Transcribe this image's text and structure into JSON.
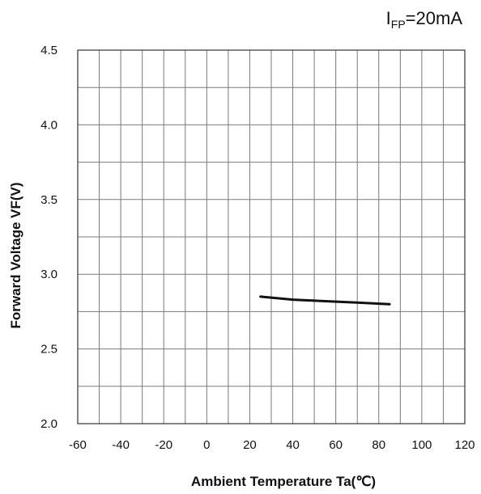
{
  "chart_data": {
    "type": "line",
    "condition": {
      "main": "I",
      "sub": "FP",
      "rest": "=20mA"
    },
    "xlabel": "Ambient Temperature Ta(℃)",
    "ylabel": "Forward Voltage VF(V)",
    "xlim": [
      -60,
      120
    ],
    "ylim": [
      2.0,
      4.5
    ],
    "x_ticks": [
      "-60",
      "-40",
      "-20",
      "0",
      "20",
      "40",
      "60",
      "80",
      "100",
      "120"
    ],
    "y_ticks": [
      "2.0",
      "2.5",
      "3.0",
      "3.5",
      "4.0",
      "4.5"
    ],
    "x_tick_values": [
      -60,
      -40,
      -20,
      0,
      20,
      40,
      60,
      80,
      100,
      120
    ],
    "y_tick_values": [
      2.0,
      2.5,
      3.0,
      3.5,
      4.0,
      4.5
    ],
    "grid": true,
    "grid_x_step": 10,
    "grid_y_step": 0.25,
    "series": [
      {
        "x": [
          25,
          40,
          55,
          70,
          85
        ],
        "y": [
          2.85,
          2.83,
          2.82,
          2.81,
          2.8
        ]
      }
    ]
  }
}
